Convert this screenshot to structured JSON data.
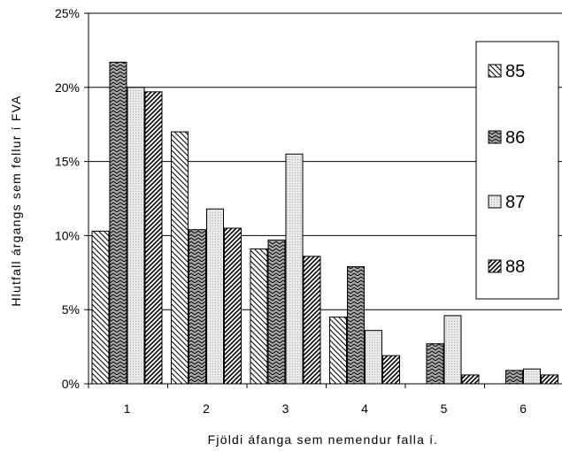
{
  "chart_data": {
    "type": "bar",
    "title": "",
    "xlabel": "Fjöldi áfanga sem nemendur falla í.",
    "ylabel": "Hlutfall árgangs sem fellur í FVA",
    "categories": [
      "1",
      "2",
      "3",
      "4",
      "5",
      "6"
    ],
    "ylim": [
      0,
      25
    ],
    "yticks": [
      0,
      5,
      10,
      15,
      20,
      25
    ],
    "ytick_labels": [
      "0%",
      "5%",
      "10%",
      "15%",
      "20%",
      "25%"
    ],
    "grid": true,
    "legend_position": "right",
    "series": [
      {
        "name": "85",
        "values": [
          10.3,
          17.0,
          9.1,
          4.5,
          0.0,
          0.0
        ],
        "pattern": "diag-left",
        "color": "#ffffff"
      },
      {
        "name": "86",
        "values": [
          21.7,
          10.4,
          9.7,
          7.9,
          2.7,
          0.9
        ],
        "pattern": "zigzag",
        "color": "#c0c0c0"
      },
      {
        "name": "87",
        "values": [
          20.0,
          11.8,
          15.5,
          3.6,
          4.6,
          1.0
        ],
        "pattern": "dots",
        "color": "#e6e6e6"
      },
      {
        "name": "88",
        "values": [
          19.7,
          10.5,
          8.6,
          1.9,
          0.6,
          0.6
        ],
        "pattern": "diag-right",
        "color": "#ffffff"
      }
    ]
  }
}
